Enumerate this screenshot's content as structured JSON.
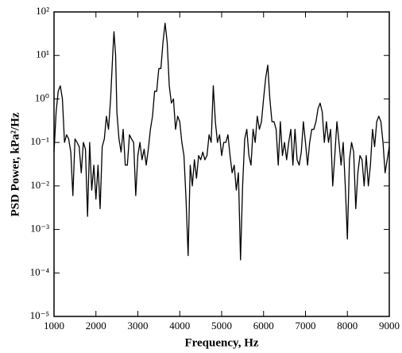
{
  "chart_data": {
    "type": "line",
    "xlabel": "Frequency, Hz",
    "ylabel": "PSD Power, kPa²/Hz",
    "log_y": true,
    "grid": false,
    "color": "#000000",
    "xlim": [
      1000,
      9000
    ],
    "xticks": [
      1000,
      2000,
      3000,
      4000,
      5000,
      6000,
      7000,
      8000,
      9000
    ],
    "ylim": [
      1e-05,
      100
    ],
    "yticks": [
      {
        "value": 1e-05,
        "label": "10⁻⁵"
      },
      {
        "value": 0.0001,
        "label": "10⁻⁴"
      },
      {
        "value": 0.001,
        "label": "10⁻³"
      },
      {
        "value": 0.01,
        "label": "10⁻²"
      },
      {
        "value": 0.1,
        "label": "10⁻¹"
      },
      {
        "value": 1,
        "label": "10⁰"
      },
      {
        "value": 10,
        "label": "10¹"
      },
      {
        "value": 100,
        "label": "10²"
      }
    ],
    "x": [
      1000,
      1050,
      1100,
      1150,
      1200,
      1250,
      1300,
      1350,
      1400,
      1450,
      1500,
      1550,
      1600,
      1650,
      1700,
      1750,
      1800,
      1850,
      1900,
      1950,
      2000,
      2050,
      2100,
      2150,
      2200,
      2250,
      2300,
      2350,
      2400,
      2430,
      2470,
      2500,
      2550,
      2600,
      2650,
      2700,
      2750,
      2800,
      2850,
      2900,
      2950,
      3000,
      3050,
      3100,
      3150,
      3200,
      3250,
      3300,
      3350,
      3400,
      3450,
      3500,
      3550,
      3600,
      3650,
      3700,
      3750,
      3800,
      3850,
      3900,
      3950,
      4000,
      4050,
      4100,
      4150,
      4200,
      4250,
      4300,
      4350,
      4400,
      4450,
      4500,
      4550,
      4600,
      4650,
      4700,
      4750,
      4800,
      4850,
      4900,
      4950,
      5000,
      5050,
      5100,
      5150,
      5200,
      5250,
      5300,
      5350,
      5400,
      5450,
      5500,
      5550,
      5600,
      5650,
      5700,
      5750,
      5800,
      5850,
      5900,
      5950,
      6000,
      6050,
      6100,
      6150,
      6200,
      6250,
      6300,
      6350,
      6400,
      6450,
      6500,
      6550,
      6600,
      6650,
      6700,
      6750,
      6800,
      6850,
      6900,
      6950,
      7000,
      7050,
      7100,
      7150,
      7200,
      7250,
      7300,
      7350,
      7400,
      7450,
      7500,
      7550,
      7600,
      7650,
      7700,
      7750,
      7800,
      7850,
      7900,
      7950,
      8000,
      8050,
      8100,
      8150,
      8200,
      8250,
      8300,
      8350,
      8400,
      8450,
      8500,
      8550,
      8600,
      8650,
      8700,
      8750,
      8800,
      8850,
      8900,
      8950,
      9000
    ],
    "values": [
      0.06,
      0.5,
      1.5,
      2.0,
      1.0,
      0.1,
      0.15,
      0.12,
      0.06,
      0.006,
      0.12,
      0.1,
      0.08,
      0.02,
      0.1,
      0.07,
      0.002,
      0.1,
      0.008,
      0.03,
      0.005,
      0.03,
      0.003,
      0.08,
      0.12,
      0.4,
      0.2,
      1,
      10,
      35,
      10,
      0.5,
      0.12,
      0.06,
      0.2,
      0.03,
      0.03,
      0.15,
      0.12,
      0.1,
      0.006,
      0.05,
      0.1,
      0.04,
      0.07,
      0.03,
      0.07,
      0.2,
      0.4,
      1.5,
      1.5,
      5,
      5,
      20,
      55,
      20,
      2,
      0.8,
      1,
      0.2,
      0.4,
      0.3,
      0.1,
      0.05,
      0.005,
      0.00025,
      0.03,
      0.01,
      0.04,
      0.015,
      0.05,
      0.04,
      0.06,
      0.04,
      0.05,
      0.15,
      0.1,
      2,
      0.3,
      0.1,
      0.15,
      0.05,
      0.1,
      0.1,
      0.15,
      0.05,
      0.02,
      0.03,
      0.008,
      0.02,
      0.0002,
      0.01,
      0.12,
      0.2,
      0.05,
      0.03,
      0.2,
      0.1,
      0.4,
      0.2,
      0.3,
      1,
      3,
      6,
      1,
      0.3,
      0.3,
      0.2,
      0.03,
      0.3,
      0.05,
      0.1,
      0.04,
      0.1,
      0.2,
      0.03,
      0.2,
      0.04,
      0.03,
      0.06,
      0.3,
      0.1,
      0.03,
      0.1,
      0.2,
      0.2,
      0.3,
      0.6,
      0.8,
      0.5,
      0.1,
      0.3,
      0.1,
      0.2,
      0.01,
      0.05,
      0.3,
      0.1,
      0.03,
      0.1,
      0.01,
      0.0006,
      0.04,
      0.1,
      0.06,
      0.003,
      0.02,
      0.05,
      0.04,
      0.01,
      0.05,
      0.01,
      0.03,
      0.2,
      0.08,
      0.3,
      0.4,
      0.3,
      0.1,
      0.02,
      0.04,
      0.08
    ]
  }
}
